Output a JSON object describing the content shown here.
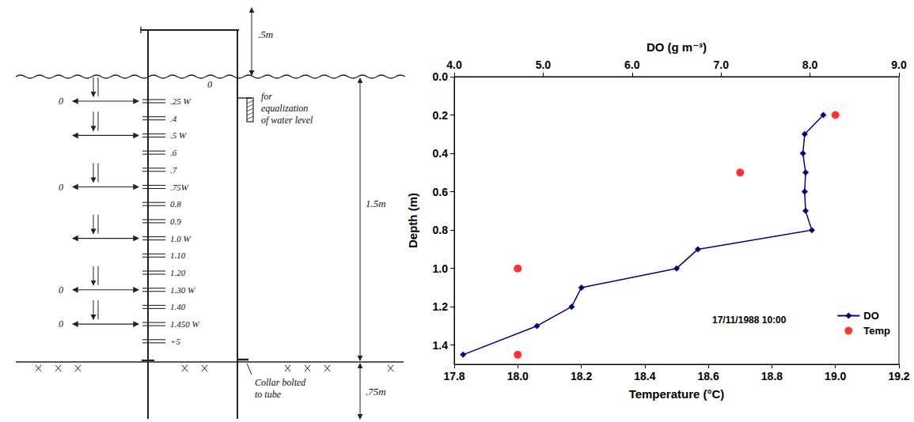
{
  "sketch": {
    "top_height": ".5m",
    "surface_label": "0",
    "marks": [
      {
        "label": ".25 W",
        "arrow_label": "0"
      },
      {
        "label": ".4"
      },
      {
        "label": ".5 W"
      },
      {
        "label": ".6"
      },
      {
        "label": ".7"
      },
      {
        "label": ".75W",
        "arrow_label": "0"
      },
      {
        "label": "0.8"
      },
      {
        "label": "0.9"
      },
      {
        "label": "1.0 W"
      },
      {
        "label": "1.10"
      },
      {
        "label": "1.20"
      },
      {
        "label": "1.30 W",
        "arrow_label": "0"
      },
      {
        "label": "1.40"
      },
      {
        "label": "1.450 W",
        "arrow_label": "0"
      },
      {
        "label": "+5"
      }
    ],
    "pipe_note": "for equalization of water level",
    "water_depth": "1.5m",
    "collar_note": "Collar bolted to tube",
    "below_ground": ".75m"
  },
  "chart_data": {
    "type": "line",
    "xlabel": "Temperature (°C)",
    "ylabel": "Depth (m)",
    "x2label": "DO (g m⁻³)",
    "annotation": "17/11/1988 10:00",
    "xlim": [
      17.8,
      19.2
    ],
    "xticks": [
      17.8,
      {
        "value": 18,
        "label": "18.0"
      },
      18.2,
      18.4,
      18.6,
      18.8,
      {
        "value": 19,
        "label": "19.0"
      },
      19.2
    ],
    "x2lim": [
      4,
      9
    ],
    "x2ticks": [
      {
        "value": 4,
        "label": "4.0"
      },
      {
        "value": 5,
        "label": "5.0"
      },
      {
        "value": 6,
        "label": "6.0"
      },
      {
        "value": 7,
        "label": "7.0"
      },
      {
        "value": 8,
        "label": "8.0"
      },
      {
        "value": 9,
        "label": "9.0"
      }
    ],
    "ylim": [
      0,
      1.5
    ],
    "yticks": [
      {
        "value": 0,
        "label": "0.0"
      },
      0.2,
      0.4,
      0.6,
      0.8,
      {
        "value": 1,
        "label": "1.0"
      },
      1.2,
      1.4
    ],
    "grid": false,
    "legend": "bottom right",
    "series": [
      {
        "name": "DO",
        "type": "line",
        "axis": "x2",
        "color": "#000080",
        "marker": "diamond",
        "line_style": "solid",
        "x": [
          8.15,
          7.94,
          7.92,
          7.95,
          7.94,
          7.95,
          8.02,
          6.74,
          6.5,
          5.43,
          5.32,
          4.93,
          4.1
        ],
        "y": [
          0.2,
          0.3,
          0.4,
          0.5,
          0.6,
          0.7,
          0.8,
          0.9,
          1.0,
          1.1,
          1.2,
          1.3,
          1.45
        ]
      },
      {
        "name": "Temp",
        "type": "scatter",
        "color": "#ff0000",
        "marker": "circle",
        "x": [
          19.0,
          18.7,
          18.0,
          18.0
        ],
        "y": [
          0.2,
          0.5,
          1.0,
          1.45
        ]
      }
    ]
  }
}
